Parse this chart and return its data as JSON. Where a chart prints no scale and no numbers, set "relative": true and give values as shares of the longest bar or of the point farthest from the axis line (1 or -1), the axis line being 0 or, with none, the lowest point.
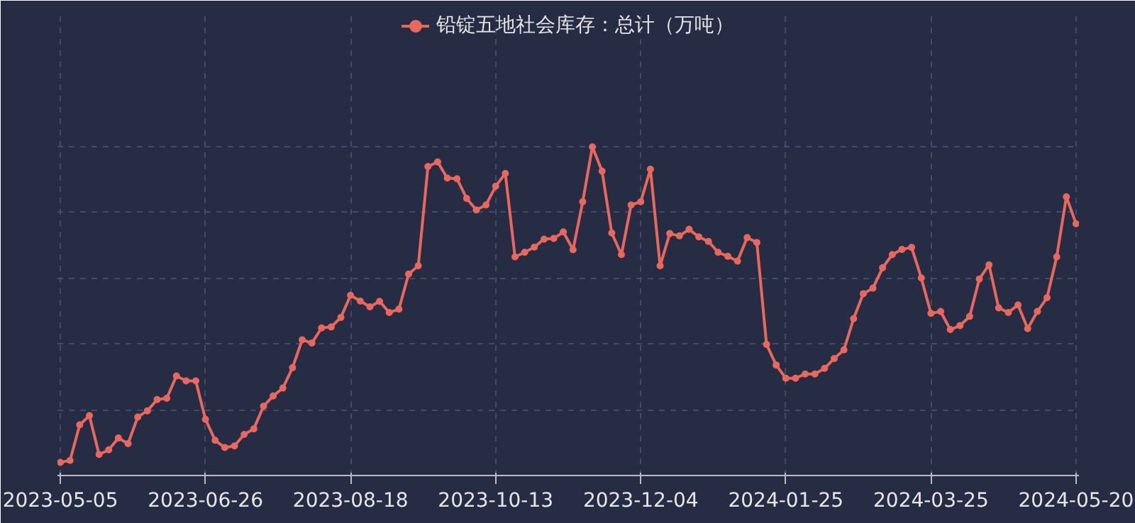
{
  "chart_data": {
    "type": "line",
    "relative": true,
    "categories": [
      "2023-05-05",
      null,
      null,
      null,
      null,
      null,
      null,
      null,
      null,
      null,
      null,
      null,
      null,
      null,
      null,
      "2023-06-26",
      null,
      null,
      null,
      null,
      null,
      null,
      null,
      null,
      null,
      null,
      null,
      null,
      null,
      null,
      "2023-08-18",
      null,
      null,
      null,
      null,
      null,
      null,
      null,
      null,
      null,
      null,
      null,
      null,
      null,
      null,
      "2023-10-13",
      null,
      null,
      null,
      null,
      null,
      null,
      null,
      null,
      null,
      null,
      null,
      null,
      null,
      null,
      "2023-12-04",
      null,
      null,
      null,
      null,
      null,
      null,
      null,
      null,
      null,
      null,
      null,
      null,
      null,
      null,
      "2024-01-25",
      null,
      null,
      null,
      null,
      null,
      null,
      null,
      null,
      null,
      null,
      null,
      null,
      null,
      null,
      "2024-03-25",
      null,
      null,
      null,
      null,
      null,
      null,
      null,
      null,
      null,
      null,
      null,
      null,
      null,
      null,
      "2024-05-20"
    ],
    "series": [
      {
        "name": "铅锭五地社会库存：总计（万吨）",
        "color": "#e8685e",
        "values": [
          0.04,
          0.046,
          0.154,
          0.182,
          0.064,
          0.078,
          0.114,
          0.097,
          0.178,
          0.197,
          0.231,
          0.235,
          0.303,
          0.288,
          0.288,
          0.171,
          0.107,
          0.085,
          0.09,
          0.125,
          0.142,
          0.211,
          0.242,
          0.266,
          0.328,
          0.413,
          0.403,
          0.449,
          0.452,
          0.481,
          0.548,
          0.531,
          0.513,
          0.53,
          0.496,
          0.506,
          0.613,
          0.638,
          0.94,
          0.954,
          0.905,
          0.903,
          0.843,
          0.808,
          0.823,
          0.88,
          0.919,
          0.665,
          0.679,
          0.695,
          0.719,
          0.721,
          0.741,
          0.687,
          0.833,
          1.0,
          0.926,
          0.738,
          0.672,
          0.823,
          0.833,
          0.932,
          0.638,
          0.736,
          0.729,
          0.749,
          0.726,
          0.712,
          0.679,
          0.667,
          0.652,
          0.724,
          0.709,
          0.399,
          0.336,
          0.296,
          0.296,
          0.309,
          0.309,
          0.326,
          0.356,
          0.382,
          0.477,
          0.553,
          0.57,
          0.632,
          0.672,
          0.688,
          0.694,
          0.601,
          0.493,
          0.499,
          0.444,
          0.456,
          0.484,
          0.598,
          0.641,
          0.51,
          0.496,
          0.519,
          0.447,
          0.499,
          0.541,
          0.665,
          0.848,
          0.766
        ]
      }
    ],
    "legend": "top",
    "grid": true,
    "marker": "circle",
    "line_style": "solid"
  }
}
